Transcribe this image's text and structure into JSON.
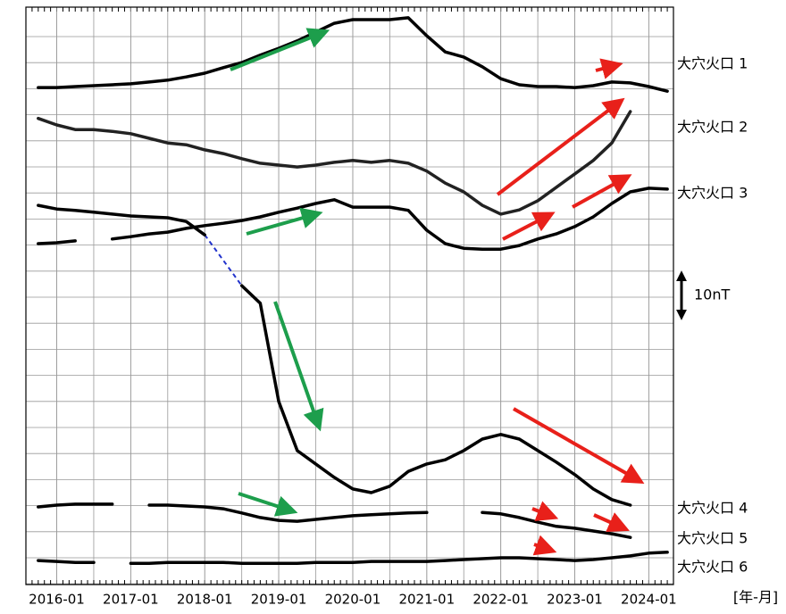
{
  "chart_data": {
    "type": "line",
    "x_label": "[年-月]",
    "x": [
      "2015-10",
      "2016-01",
      "2016-04",
      "2016-07",
      "2016-10",
      "2017-01",
      "2017-04",
      "2017-07",
      "2017-10",
      "2018-01",
      "2018-04",
      "2018-07",
      "2018-10",
      "2019-01",
      "2019-04",
      "2019-07",
      "2019-10",
      "2020-01",
      "2020-04",
      "2020-07",
      "2020-10",
      "2021-01",
      "2021-04",
      "2021-07",
      "2021-10",
      "2022-01",
      "2022-04",
      "2022-07",
      "2022-10",
      "2023-01",
      "2023-04",
      "2023-07",
      "2023-10",
      "2024-01",
      "2024-04"
    ],
    "xlim": [
      "2015-08",
      "2024-05"
    ],
    "xticks": [
      "2016-01",
      "2017-01",
      "2018-01",
      "2019-01",
      "2020-01",
      "2021-01",
      "2022-01",
      "2023-01",
      "2024-01"
    ],
    "ylim": [
      0,
      125
    ],
    "scale_bar": {
      "value": 10,
      "label": "10nT"
    },
    "grid": true,
    "series": [
      {
        "name": "大穴火口 1",
        "color": "#000000",
        "values": [
          107.6,
          107.6,
          107.8,
          108.0,
          108.2,
          108.4,
          108.8,
          109.2,
          109.9,
          110.7,
          111.9,
          113.0,
          114.6,
          116.1,
          117.7,
          119.6,
          121.5,
          122.3,
          122.3,
          122.3,
          122.7,
          118.8,
          115.3,
          114.2,
          112.1,
          109.5,
          108.2,
          107.8,
          107.8,
          107.6,
          108.0,
          108.8,
          108.6,
          107.8,
          106.8
        ]
      },
      {
        "name": "大穴火口 2",
        "color": "#222222",
        "values": [
          100.9,
          99.5,
          98.5,
          98.5,
          98.1,
          97.6,
          96.6,
          95.6,
          95.2,
          94.1,
          93.3,
          92.2,
          91.2,
          90.8,
          90.4,
          90.8,
          91.4,
          91.8,
          91.4,
          91.8,
          91.2,
          89.5,
          86.9,
          85.0,
          82.1,
          80.2,
          81.1,
          83.1,
          86.0,
          88.9,
          91.8,
          95.6,
          102.4,
          null,
          null
        ]
      },
      {
        "name": "大穴火口 3",
        "color": "#000000",
        "values": [
          73.8,
          74.0,
          74.4,
          null,
          74.8,
          75.3,
          75.9,
          76.3,
          77.1,
          77.7,
          78.2,
          78.8,
          79.6,
          80.6,
          81.5,
          82.5,
          83.3,
          81.7,
          81.7,
          81.7,
          81.0,
          76.7,
          73.8,
          72.8,
          72.6,
          72.6,
          73.4,
          74.8,
          75.9,
          77.5,
          79.6,
          82.5,
          85.0,
          85.8,
          85.6
        ]
      },
      {
        "name": "大穴火口 4",
        "color": "#000000",
        "gap_color": "#2233cc",
        "values": [
          82.1,
          81.3,
          81.0,
          80.6,
          80.2,
          79.8,
          79.6,
          79.4,
          78.6,
          75.7,
          null,
          64.7,
          60.9,
          39.6,
          29.0,
          26.1,
          23.2,
          20.7,
          19.9,
          21.3,
          24.5,
          26.1,
          27.0,
          29.0,
          31.5,
          32.5,
          31.5,
          29.0,
          26.5,
          23.8,
          20.7,
          18.4,
          17.2,
          null,
          null
        ]
      },
      {
        "name": "大穴火口 5",
        "color": "#000000",
        "values": [
          16.8,
          17.2,
          17.4,
          17.4,
          17.4,
          null,
          17.2,
          17.2,
          17.0,
          16.8,
          16.4,
          15.5,
          14.5,
          13.9,
          13.7,
          14.1,
          14.5,
          14.9,
          15.1,
          15.3,
          15.5,
          15.6,
          null,
          null,
          15.6,
          15.3,
          14.5,
          13.5,
          12.6,
          12.2,
          11.6,
          11.0,
          10.2,
          null,
          null
        ]
      },
      {
        "name": "大穴火口 6",
        "color": "#000000",
        "values": [
          5.2,
          5.0,
          4.8,
          4.8,
          null,
          4.6,
          4.6,
          4.8,
          4.8,
          4.8,
          4.8,
          4.6,
          4.6,
          4.6,
          4.6,
          4.8,
          4.8,
          4.8,
          5.0,
          5.0,
          5.0,
          5.0,
          5.2,
          5.4,
          5.6,
          5.8,
          5.8,
          5.6,
          5.4,
          5.2,
          5.4,
          5.8,
          6.2,
          6.8,
          7.0
        ]
      }
    ]
  }
}
